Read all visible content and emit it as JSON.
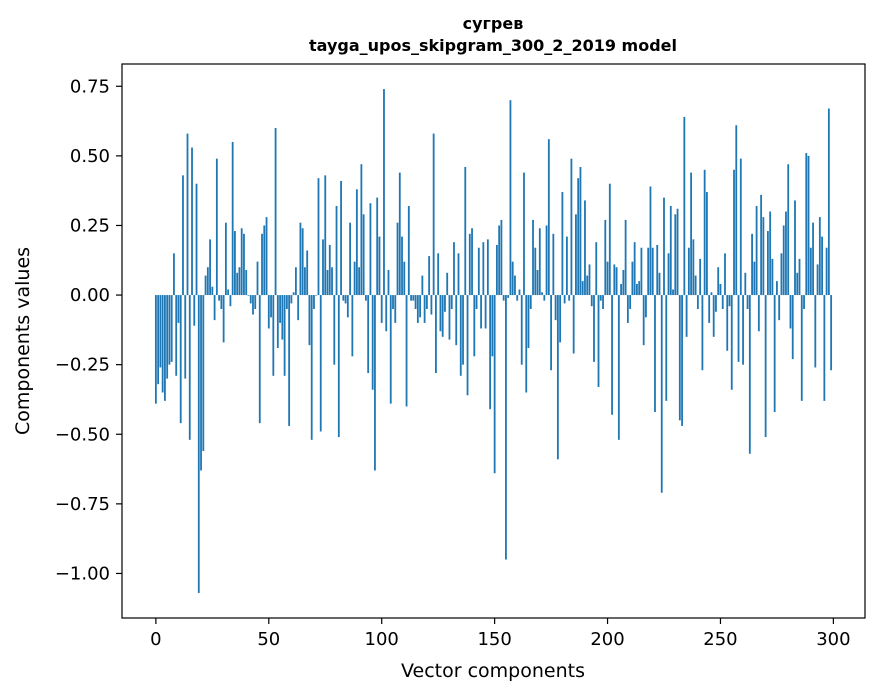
{
  "chart_data": {
    "type": "bar",
    "title_line1": "сугрев",
    "title_line2": "tayga_upos_skipgram_300_2_2019 model",
    "xlabel": "Vector components",
    "ylabel": "Components values",
    "xlim": [
      -15,
      314
    ],
    "ylim": [
      -1.16,
      0.83
    ],
    "xticks": [
      0,
      50,
      100,
      150,
      200,
      250,
      300
    ],
    "xtick_labels": [
      "0",
      "50",
      "100",
      "150",
      "200",
      "250",
      "300"
    ],
    "yticks": [
      -1.0,
      -0.75,
      -0.5,
      -0.25,
      0.0,
      0.25,
      0.5,
      0.75
    ],
    "ytick_labels": [
      "−1.00",
      "−0.75",
      "−0.50",
      "−0.25",
      "0.00",
      "0.25",
      "0.50",
      "0.75"
    ],
    "bar_color": "#1f77b4",
    "values": [
      -0.39,
      -0.32,
      -0.26,
      -0.35,
      -0.38,
      -0.3,
      -0.25,
      -0.24,
      0.15,
      -0.29,
      -0.1,
      -0.46,
      0.43,
      -0.3,
      0.58,
      -0.52,
      0.53,
      -0.11,
      0.4,
      -1.07,
      -0.63,
      -0.56,
      0.07,
      0.1,
      0.2,
      0.03,
      -0.09,
      0.49,
      -0.02,
      -0.05,
      -0.17,
      0.26,
      0.02,
      -0.04,
      0.55,
      0.23,
      0.08,
      0.1,
      0.24,
      0.22,
      0.09,
      0.0,
      -0.03,
      -0.07,
      -0.05,
      0.12,
      -0.46,
      0.22,
      0.25,
      0.28,
      -0.12,
      -0.08,
      -0.29,
      0.6,
      -0.19,
      -0.1,
      -0.16,
      -0.29,
      -0.05,
      -0.47,
      -0.03,
      0.01,
      0.1,
      -0.09,
      0.26,
      0.24,
      0.1,
      0.16,
      -0.18,
      -0.52,
      -0.05,
      0.0,
      0.42,
      -0.49,
      0.2,
      0.43,
      0.09,
      0.18,
      0.1,
      -0.25,
      0.32,
      -0.51,
      0.41,
      -0.02,
      -0.03,
      -0.08,
      0.26,
      -0.22,
      0.12,
      0.38,
      0.1,
      0.47,
      0.29,
      -0.02,
      -0.28,
      0.33,
      -0.34,
      -0.63,
      0.35,
      0.21,
      -0.1,
      0.74,
      -0.13,
      0.09,
      -0.39,
      -0.05,
      -0.1,
      0.26,
      0.44,
      0.21,
      0.12,
      -0.4,
      0.32,
      -0.02,
      -0.02,
      -0.05,
      -0.1,
      -0.08,
      0.07,
      -0.1,
      -0.05,
      0.14,
      -0.07,
      0.58,
      -0.28,
      0.15,
      -0.13,
      -0.15,
      -0.06,
      0.08,
      -0.16,
      -0.05,
      0.19,
      -0.18,
      0.15,
      -0.29,
      -0.25,
      0.46,
      -0.36,
      0.22,
      0.24,
      -0.22,
      -0.05,
      0.17,
      -0.12,
      0.19,
      -0.12,
      0.2,
      -0.41,
      -0.22,
      -0.64,
      0.18,
      0.25,
      0.27,
      -0.02,
      -0.95,
      -0.01,
      0.7,
      0.12,
      0.07,
      -0.02,
      0.02,
      -0.25,
      0.44,
      -0.35,
      -0.19,
      -0.05,
      0.27,
      0.17,
      0.09,
      0.24,
      0.01,
      -0.02,
      0.25,
      0.56,
      -0.27,
      0.22,
      -0.09,
      -0.59,
      -0.17,
      0.37,
      -0.03,
      0.21,
      -0.02,
      0.49,
      -0.21,
      0.29,
      0.42,
      0.46,
      0.05,
      0.34,
      0.07,
      0.11,
      -0.04,
      -0.24,
      0.19,
      -0.33,
      -0.02,
      -0.05,
      0.27,
      0.12,
      0.4,
      -0.43,
      0.11,
      0.1,
      -0.52,
      0.04,
      0.09,
      0.27,
      -0.1,
      -0.05,
      0.12,
      0.19,
      0.04,
      0.05,
      0.17,
      -0.18,
      -0.08,
      0.17,
      0.39,
      0.17,
      -0.42,
      0.18,
      0.08,
      -0.71,
      0.35,
      -0.38,
      0.15,
      0.32,
      0.02,
      0.29,
      0.31,
      -0.45,
      -0.47,
      0.64,
      -0.15,
      0.17,
      0.44,
      0.2,
      0.07,
      -0.05,
      0.13,
      -0.27,
      0.45,
      0.37,
      -0.1,
      0.01,
      -0.15,
      -0.06,
      0.1,
      0.04,
      -0.05,
      0.15,
      -0.2,
      -0.04,
      -0.34,
      0.45,
      0.61,
      -0.24,
      0.49,
      -0.25,
      0.08,
      -0.05,
      -0.57,
      0.22,
      0.12,
      0.32,
      -0.13,
      0.36,
      0.28,
      -0.51,
      0.23,
      0.3,
      0.13,
      -0.42,
      0.05,
      -0.09,
      0.15,
      0.25,
      0.3,
      0.47,
      -0.12,
      -0.23,
      0.34,
      0.08,
      0.13,
      -0.38,
      -0.05,
      0.51,
      0.5,
      0.17,
      0.26,
      -0.26,
      0.11,
      0.28,
      0.21,
      -0.38,
      0.17,
      0.67,
      -0.27
    ]
  }
}
